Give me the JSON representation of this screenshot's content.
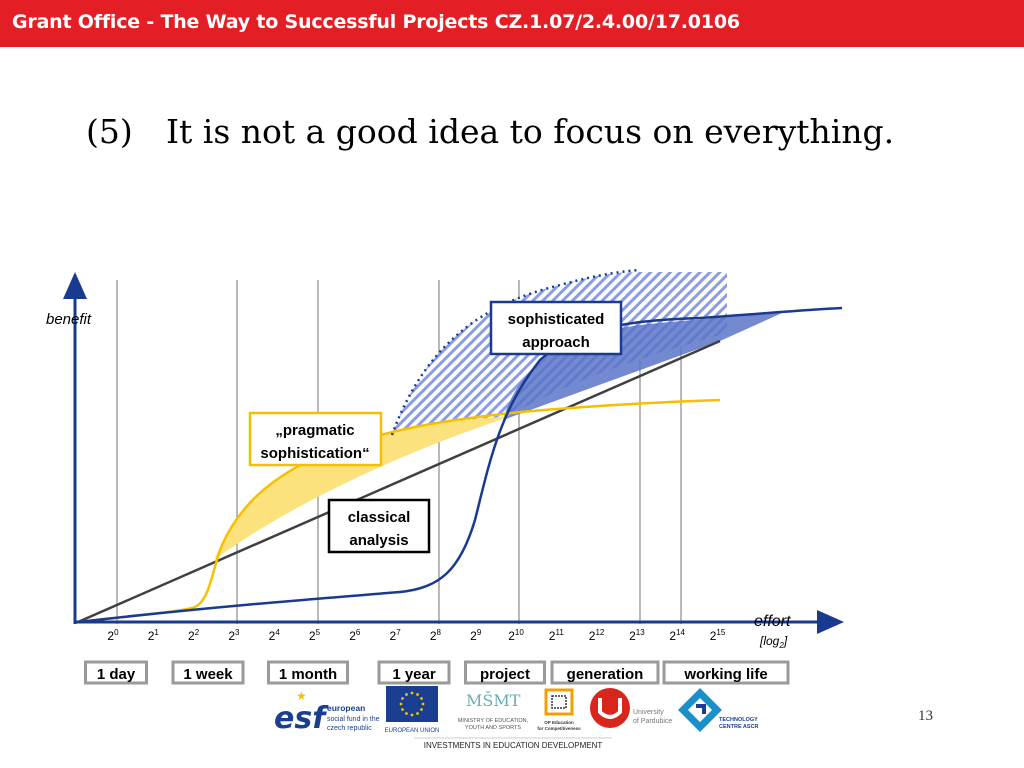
{
  "header": {
    "title": "Grant Office - The Way to Successful Projects CZ.1.07/2.4.00/17.0106"
  },
  "slide": {
    "number": "(5)",
    "title": "It is not a good idea to focus on everything."
  },
  "diagram": {
    "y_axis_label": "benefit",
    "x_axis_label": "effort",
    "x_axis_unit": "[log",
    "x_axis_unit_sub": "2",
    "x_axis_unit_close": "]",
    "tick_base": "2",
    "ticks": [
      "0",
      "1",
      "2",
      "3",
      "4",
      "5",
      "6",
      "7",
      "8",
      "9",
      "10",
      "11",
      "12",
      "13",
      "14",
      "15"
    ],
    "callouts": {
      "sophisticated": [
        "sophisticated",
        "approach"
      ],
      "pragmatic": [
        "„pragmatic",
        "sophistication“"
      ],
      "classical": [
        "classical",
        "analysis"
      ]
    },
    "time_labels": [
      "1 day",
      "1 week",
      "1 month",
      "1 year",
      "project",
      "generation",
      "working life"
    ],
    "colors": {
      "navy": "#1a3a8f",
      "yellow": "#f5c000",
      "yellow_fill": "#fbe27c",
      "blue_fill": "#5a74c8",
      "hatch": "#7a8fe0"
    }
  },
  "footer": {
    "logos": {
      "esf_mark": "esf",
      "esf_text": [
        "european",
        "social fund in the",
        "czech republic"
      ],
      "eu_text": "EUROPEAN UNION",
      "msmt_mark": "MŠMT",
      "msmt_text": [
        "MINISTRY OF EDUCATION,",
        "YOUTH AND SPORTS"
      ],
      "op_text": [
        "OP Education",
        "for Competitiveness"
      ],
      "upce_text": [
        "University",
        "of Pardubice"
      ],
      "tc_text": [
        "TECHNOLOGY",
        "CENTRE ASCR"
      ]
    },
    "tagline": "INVESTMENTS IN EDUCATION DEVELOPMENT"
  },
  "page_number": "13"
}
